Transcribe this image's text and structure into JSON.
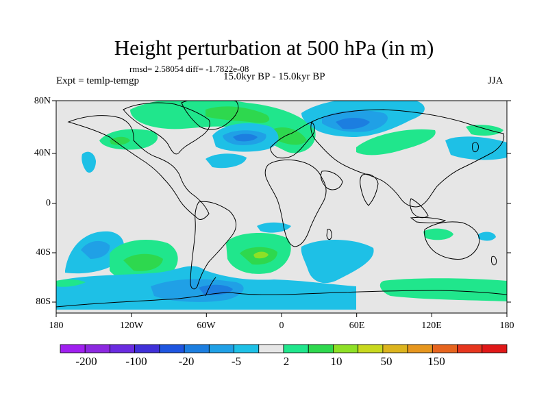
{
  "title": "Height perturbation at 500 hPa (in m)",
  "stats_line": "rmsd= 2.58054 diff= -1.7822e-08",
  "left_subtitle": "Expt = temlp-temgp",
  "center_subtitle": "15.0kyr BP - 15.0kyr BP",
  "right_subtitle": "JJA",
  "map": {
    "lat_ticks": [
      "80N",
      "40N",
      "0",
      "40S",
      "80S"
    ],
    "lon_ticks": [
      "180",
      "120W",
      "60W",
      "0",
      "60E",
      "120E",
      "180"
    ]
  },
  "colorbar": {
    "colors": [
      "#a020f0",
      "#8c28e0",
      "#6a2be0",
      "#4030d8",
      "#1e55e0",
      "#1c7ee0",
      "#20a0e6",
      "#1ec0e6",
      "#e6e6e6",
      "#20e68c",
      "#2ed84e",
      "#8ee026",
      "#c8d81e",
      "#dcb41e",
      "#e6961e",
      "#e6641e",
      "#e6361e",
      "#e01818"
    ],
    "labels": [
      "-200",
      "-100",
      "-20",
      "-5",
      "2",
      "10",
      "50",
      "150"
    ]
  },
  "colors": {
    "land_background": "#e6e6e6",
    "coast": "#000000"
  }
}
